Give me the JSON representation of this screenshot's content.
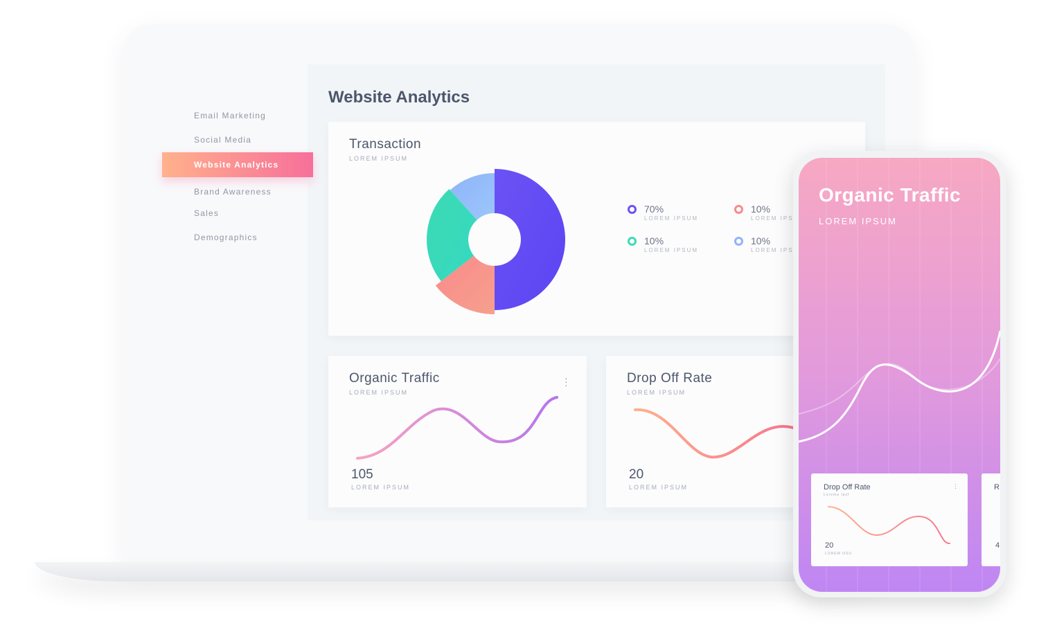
{
  "sidebar": {
    "items": [
      {
        "label": "Email Marketing"
      },
      {
        "label": "Social Media"
      },
      {
        "label": "Website Analytics",
        "active": true
      },
      {
        "label": "Brand Awareness"
      },
      {
        "label": "Sales"
      },
      {
        "label": "Demographics"
      }
    ]
  },
  "page_title": "Website Analytics",
  "transaction": {
    "title": "Transaction",
    "subtitle": "LOREM IPSUM",
    "legend": [
      {
        "value": "70%",
        "label": "LOREM IPSUM",
        "color": "#6b52f5"
      },
      {
        "value": "10%",
        "label": "LOREM IPSUM",
        "color": "#f98a8a"
      },
      {
        "value": "10%",
        "label": "LOREM IPSUM",
        "color": "#3ddbb4"
      },
      {
        "value": "10%",
        "label": "LOREM IPSUM",
        "color": "#8fb4f8"
      }
    ]
  },
  "organic": {
    "title": "Organic Traffic",
    "subtitle": "LOREM IPSUM",
    "value": "105",
    "value_label": "LOREM IPSUM"
  },
  "dropoff": {
    "title": "Drop Off Rate",
    "subtitle": "LOREM IPSUM",
    "value": "20",
    "value_label": "LOREM IPSUM"
  },
  "phone": {
    "title": "Organic Traffic",
    "subtitle": "LOREM IPSUM",
    "card": {
      "title": "Drop Off Rate",
      "subtitle": "Lorema Ipsf",
      "value": "20",
      "value_label": "LOREM OSU"
    },
    "card2": {
      "title": "R",
      "value": "4"
    }
  }
}
